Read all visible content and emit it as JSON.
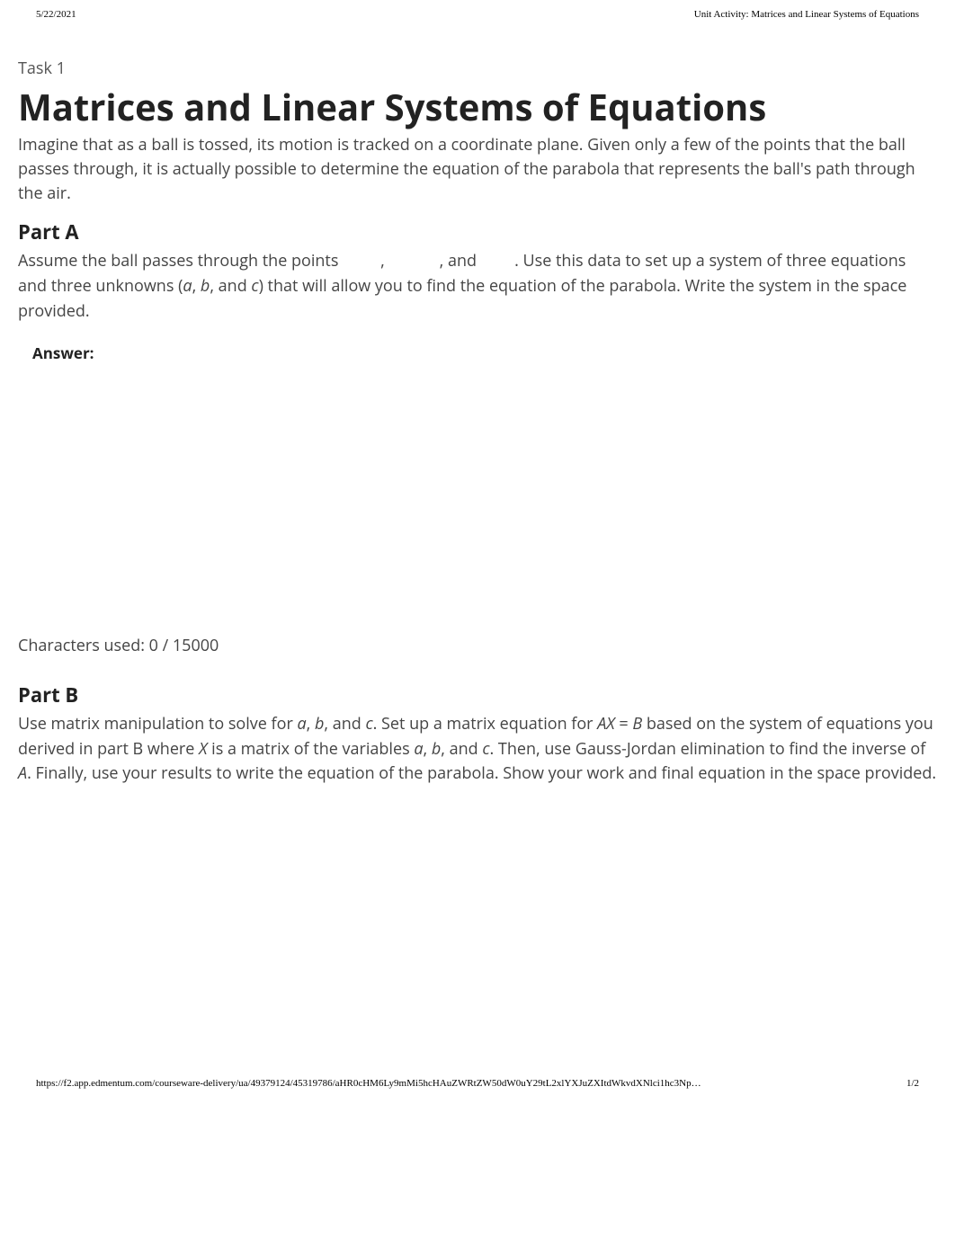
{
  "header": {
    "date": "5/22/2021",
    "title": "Unit Activity: Matrices and Linear Systems of Equations"
  },
  "task_label": "Task 1",
  "main_title": "Matrices and Linear Systems of Equations",
  "intro": "Imagine that as a ball is tossed, its motion is tracked on a coordinate plane. Given only a few of the points that the ball passes through, it is actually possible to determine the equation of the parabola that represents the ball's path through the air.",
  "partA": {
    "heading": "Part A",
    "text_1": "Assume the ball passes through the points ",
    "text_2": ",",
    "text_3": ", and ",
    "text_4": ". Use this data to set up a system of three equations and three unknowns (",
    "var_a": "a",
    "text_5": ", ",
    "var_b": "b",
    "text_6": ", and ",
    "var_c": "c",
    "text_7": ") that will allow you to find the equation of the parabola. Write the system in the space provided.",
    "answer_label": "Answer:",
    "char_used": "Characters used: 0 / 15000"
  },
  "partB": {
    "heading": "Part B",
    "text_1": "Use matrix manipulation to solve for ",
    "var_a": "a",
    "text_2": ", ",
    "var_b": "b",
    "text_3": ", and ",
    "var_c": "c",
    "text_4": ". Set up a matrix equation for ",
    "var_AX": "AX",
    "text_5": " = ",
    "var_B": "B",
    "text_6": " based on the system of equations you derived in part B where ",
    "var_X": "X",
    "text_7": " is a matrix of the variables ",
    "var_a2": "a",
    "text_8": ", ",
    "var_b2": "b",
    "text_9": ", and ",
    "var_c2": "c",
    "text_10": ". Then, use Gauss-Jordan elimination to find the inverse of ",
    "var_A": "A",
    "text_11": ". Finally, use your results to write the equation of the parabola. Show your work and final equation in the space provided."
  },
  "footer": {
    "url": "https://f2.app.edmentum.com/courseware-delivery/ua/49379124/45319786/aHR0cHM6Ly9mMi5hcHAuZWRtZW50dW0uY29tL2xlYXJuZXItdWkvdXNlci1hc3Np…",
    "page_num": "1/2"
  }
}
